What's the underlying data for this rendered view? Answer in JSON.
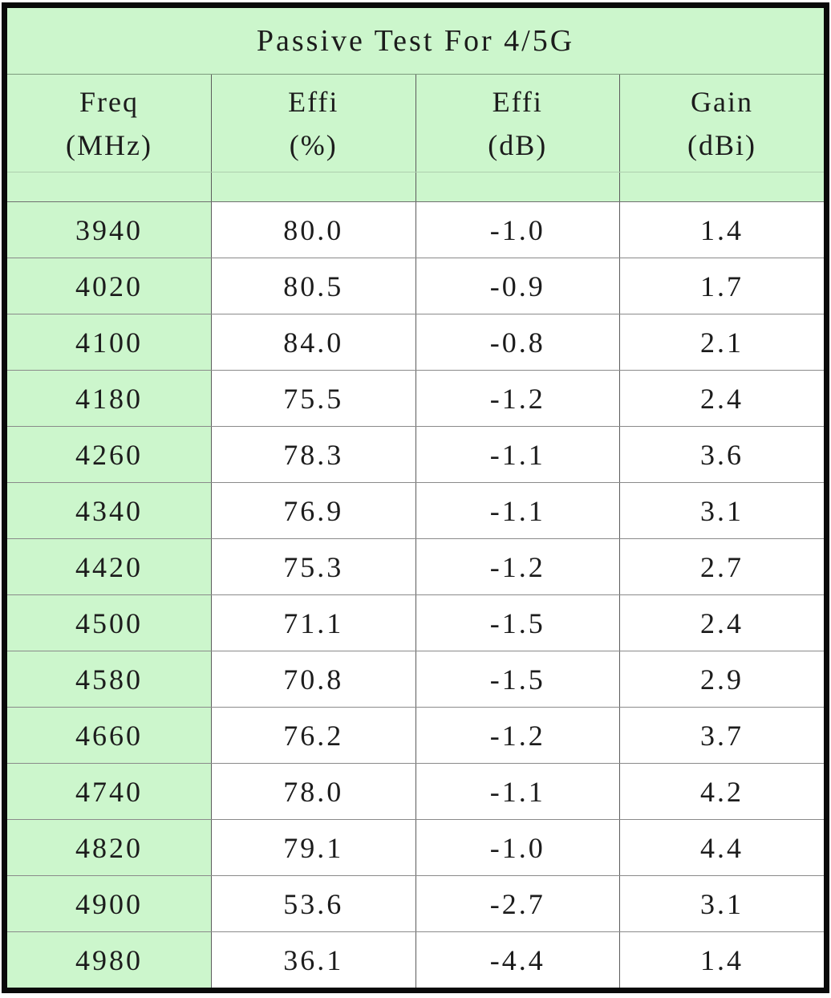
{
  "title": "Passive Test For 4/5G",
  "colors": {
    "cell_green": "#ccf6cc",
    "outer_border": "#0a0a0a",
    "grid_line": "#8a8a8a",
    "text": "#1c1c1c"
  },
  "table": {
    "headers": [
      {
        "label": "Freq",
        "unit": "(MHz)"
      },
      {
        "label": "Effi",
        "unit": "(%)"
      },
      {
        "label": "Effi",
        "unit": "(dB)"
      },
      {
        "label": "Gain",
        "unit": "(dBi)"
      }
    ]
  },
  "chart_data": {
    "type": "table",
    "title": "Passive Test For 4/5G",
    "columns": [
      "Freq (MHz)",
      "Effi (%)",
      "Effi (dB)",
      "Gain (dBi)"
    ],
    "rows": [
      [
        3940,
        80.0,
        -1.0,
        1.4
      ],
      [
        4020,
        80.5,
        -0.9,
        1.7
      ],
      [
        4100,
        84.0,
        -0.8,
        2.1
      ],
      [
        4180,
        75.5,
        -1.2,
        2.4
      ],
      [
        4260,
        78.3,
        -1.1,
        3.6
      ],
      [
        4340,
        76.9,
        -1.1,
        3.1
      ],
      [
        4420,
        75.3,
        -1.2,
        2.7
      ],
      [
        4500,
        71.1,
        -1.5,
        2.4
      ],
      [
        4580,
        70.8,
        -1.5,
        2.9
      ],
      [
        4660,
        76.2,
        -1.2,
        3.7
      ],
      [
        4740,
        78.0,
        -1.1,
        4.2
      ],
      [
        4820,
        79.1,
        -1.0,
        4.4
      ],
      [
        4900,
        53.6,
        -2.7,
        3.1
      ],
      [
        4980,
        36.1,
        -4.4,
        1.4
      ]
    ]
  }
}
